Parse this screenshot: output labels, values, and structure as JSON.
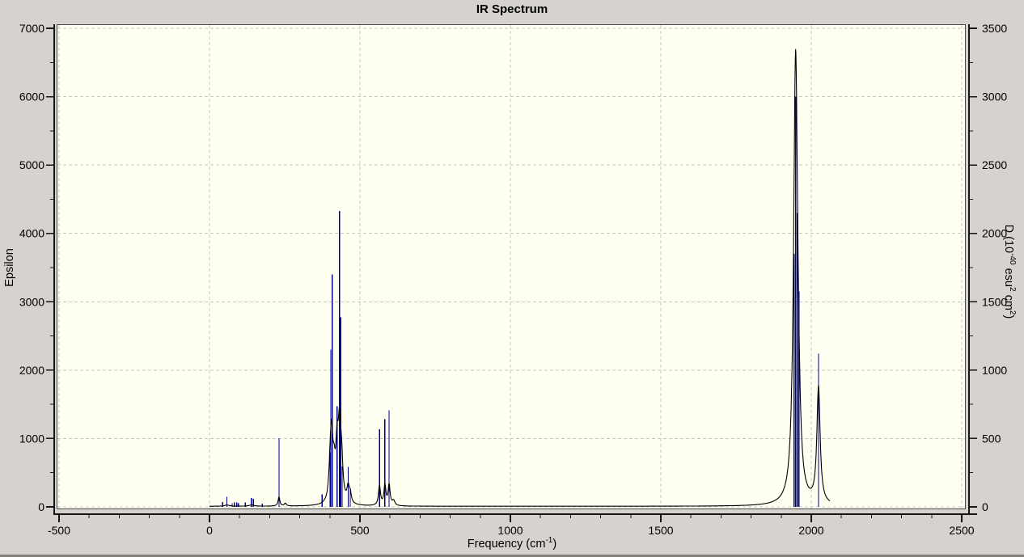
{
  "chart_data": {
    "type": "line",
    "subtype": "ir-spectrum-sticks-plus-lorentzian-curve",
    "title": "IR Spectrum",
    "legend": false,
    "grid": true,
    "x_axis": {
      "label_main": "Frequency (cm",
      "label_sup": "-1",
      "label_close": ")",
      "min": -500,
      "max": 2500,
      "major_step": 500,
      "minor_step": 100,
      "major_ticks": [
        -500,
        0,
        500,
        1000,
        1500,
        2000,
        2500
      ]
    },
    "left_axis": {
      "label": "Epsilon",
      "min": 0,
      "max": 7000,
      "major_step": 1000,
      "minor_step": 500,
      "major_ticks": [
        0,
        1000,
        2000,
        3000,
        4000,
        5000,
        6000,
        7000
      ]
    },
    "right_axis": {
      "label_p1": "D (10",
      "label_s1": "-40",
      "label_p2": " esu",
      "label_s2": "2",
      "label_p3": " cm",
      "label_s3": "2",
      "label_p4": ")",
      "min": 0,
      "max": 3500,
      "major_step": 500,
      "minor_step": 250,
      "major_ticks": [
        0,
        500,
        1000,
        1500,
        2000,
        2500,
        3000,
        3500
      ]
    },
    "sticks_units": "epsilon scale (equivalent right-axis D value = height/2)",
    "sticks": [
      [
        44,
        70
      ],
      [
        58,
        150
      ],
      [
        75,
        55
      ],
      [
        83,
        65
      ],
      [
        91,
        65
      ],
      [
        96,
        55
      ],
      [
        119,
        65
      ],
      [
        139,
        130
      ],
      [
        146,
        120
      ],
      [
        175,
        45
      ],
      [
        231,
        1005
      ],
      [
        374,
        185
      ],
      [
        401,
        800
      ],
      [
        403,
        2300
      ],
      [
        408,
        3400
      ],
      [
        424,
        1470
      ],
      [
        432,
        4330
      ],
      [
        436,
        2770
      ],
      [
        441,
        590
      ],
      [
        461,
        585
      ],
      [
        468,
        270
      ],
      [
        565,
        1137
      ],
      [
        583,
        1284
      ],
      [
        597,
        1413
      ],
      [
        1943,
        3700
      ],
      [
        1948,
        6000
      ],
      [
        1949,
        5000
      ],
      [
        1954,
        4300
      ],
      [
        1959,
        3150
      ],
      [
        2024,
        2240
      ]
    ],
    "curve_components": [
      [
        58,
        18,
        10
      ],
      [
        140,
        18,
        10
      ],
      [
        231,
        135,
        3.5
      ],
      [
        252,
        40,
        4
      ],
      [
        401,
        420,
        5
      ],
      [
        406,
        850,
        5
      ],
      [
        414,
        380,
        5
      ],
      [
        424,
        700,
        5
      ],
      [
        432,
        1000,
        5.5
      ],
      [
        439,
        500,
        5
      ],
      [
        461,
        230,
        5
      ],
      [
        468,
        120,
        4
      ],
      [
        565,
        290,
        4
      ],
      [
        583,
        295,
        4
      ],
      [
        597,
        300,
        4
      ],
      [
        612,
        70,
        5
      ],
      [
        1943,
        500,
        7
      ],
      [
        1948,
        5850,
        7.5
      ],
      [
        1954,
        700,
        7
      ],
      [
        1959,
        300,
        7
      ],
      [
        2024,
        1700,
        6.5
      ]
    ],
    "curve_domain": [
      0,
      2062
    ],
    "curve_baseline": 8,
    "colors": {
      "stick": "#00008b",
      "curve": "#000000",
      "plot_bg": "#fffff2",
      "page_bg": "#d6d3ce",
      "grid": "#c8c8c8",
      "frame": "#4a4a4a",
      "axis": "#161616",
      "text": "#000000",
      "bottom_edge": "#828078"
    }
  }
}
